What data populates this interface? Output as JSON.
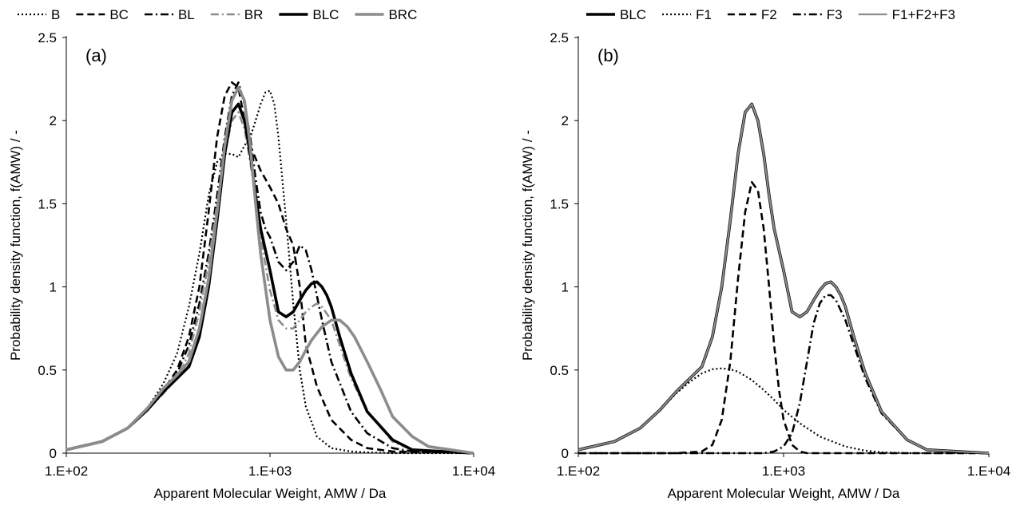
{
  "chart_data": [
    {
      "type": "line",
      "panel_label": "(a)",
      "xlabel": "Apparent Molecular Weight, AMW / Da",
      "ylabel": "Probability density function,  f(AMW) / -",
      "x_scale": "log",
      "xlim": [
        100,
        10000
      ],
      "ylim": [
        0,
        2.5
      ],
      "x_ticks": [
        100,
        1000,
        10000
      ],
      "x_tick_labels": [
        "1.E+02",
        "1.E+03",
        "1.E+04"
      ],
      "y_ticks": [
        0,
        0.5,
        1,
        1.5,
        2,
        2.5
      ],
      "y_tick_labels": [
        "0",
        "0.5",
        "1",
        "1.5",
        "2",
        "2.5"
      ],
      "grid": false,
      "legend_position": "top",
      "series": [
        {
          "name": "B",
          "color": "#000000",
          "style": "dotted",
          "x": [
            100,
            150,
            200,
            250,
            300,
            350,
            400,
            450,
            500,
            550,
            600,
            650,
            700,
            750,
            800,
            850,
            900,
            950,
            1000,
            1050,
            1100,
            1200,
            1300,
            1400,
            1500,
            1700,
            2000,
            2500,
            3000,
            4000,
            10000
          ],
          "y": [
            0.02,
            0.07,
            0.15,
            0.27,
            0.42,
            0.6,
            0.88,
            1.2,
            1.55,
            1.75,
            1.8,
            1.8,
            1.78,
            1.85,
            1.9,
            2.0,
            2.1,
            2.17,
            2.18,
            2.1,
            1.9,
            1.4,
            0.9,
            0.5,
            0.28,
            0.1,
            0.03,
            0.01,
            0.005,
            0,
            0
          ]
        },
        {
          "name": "BC",
          "color": "#000000",
          "style": "dashed",
          "x": [
            100,
            150,
            200,
            250,
            300,
            350,
            400,
            450,
            500,
            550,
            600,
            650,
            700,
            750,
            800,
            900,
            1000,
            1100,
            1200,
            1300,
            1400,
            1500,
            1700,
            2000,
            2500,
            3000,
            4000,
            10000
          ],
          "y": [
            0.02,
            0.07,
            0.15,
            0.26,
            0.38,
            0.5,
            0.7,
            1.0,
            1.45,
            1.9,
            2.15,
            2.23,
            2.2,
            2.0,
            1.85,
            1.7,
            1.6,
            1.5,
            1.35,
            1.25,
            1.0,
            0.65,
            0.4,
            0.2,
            0.08,
            0.03,
            0.01,
            0
          ]
        },
        {
          "name": "BL",
          "color": "#000000",
          "style": "dashdot",
          "x": [
            100,
            150,
            200,
            250,
            300,
            350,
            400,
            450,
            500,
            550,
            600,
            650,
            700,
            750,
            800,
            850,
            900,
            950,
            1000,
            1100,
            1200,
            1300,
            1400,
            1500,
            1600,
            1800,
            2000,
            2500,
            3000,
            4000,
            5000,
            10000
          ],
          "y": [
            0.02,
            0.07,
            0.15,
            0.27,
            0.38,
            0.48,
            0.65,
            0.9,
            1.2,
            1.55,
            1.9,
            2.15,
            2.23,
            2.1,
            1.9,
            1.65,
            1.45,
            1.35,
            1.3,
            1.15,
            1.1,
            1.15,
            1.25,
            1.22,
            1.1,
            0.8,
            0.55,
            0.25,
            0.12,
            0.03,
            0.01,
            0
          ]
        },
        {
          "name": "BR",
          "color": "#8c8c8c",
          "style": "dashdot",
          "x": [
            100,
            150,
            200,
            250,
            300,
            350,
            400,
            450,
            500,
            550,
            600,
            650,
            700,
            750,
            800,
            850,
            900,
            1000,
            1100,
            1200,
            1300,
            1400,
            1500,
            1600,
            1700,
            1800,
            2000,
            2200,
            2500,
            3000,
            4000,
            5000,
            10000
          ],
          "y": [
            0.02,
            0.07,
            0.15,
            0.26,
            0.36,
            0.45,
            0.6,
            0.85,
            1.15,
            1.5,
            1.8,
            2.0,
            2.05,
            1.95,
            1.75,
            1.55,
            1.3,
            0.98,
            0.8,
            0.75,
            0.75,
            0.8,
            0.85,
            0.88,
            0.9,
            0.88,
            0.8,
            0.65,
            0.45,
            0.25,
            0.07,
            0.02,
            0
          ]
        },
        {
          "name": "BLC",
          "color": "#000000",
          "style": "solid-thick",
          "x": [
            100,
            150,
            200,
            250,
            300,
            350,
            400,
            450,
            500,
            550,
            600,
            650,
            700,
            750,
            800,
            850,
            900,
            1000,
            1100,
            1200,
            1300,
            1400,
            1500,
            1600,
            1700,
            1800,
            1900,
            2000,
            2200,
            2500,
            3000,
            4000,
            5000,
            10000
          ],
          "y": [
            0.02,
            0.07,
            0.15,
            0.26,
            0.37,
            0.45,
            0.52,
            0.7,
            1.0,
            1.4,
            1.8,
            2.05,
            2.1,
            2.0,
            1.8,
            1.55,
            1.35,
            1.1,
            0.85,
            0.82,
            0.85,
            0.92,
            0.98,
            1.02,
            1.03,
            1.0,
            0.95,
            0.88,
            0.7,
            0.48,
            0.25,
            0.08,
            0.02,
            0
          ]
        },
        {
          "name": "BRC",
          "color": "#8c8c8c",
          "style": "solid-thick",
          "x": [
            100,
            150,
            200,
            250,
            300,
            350,
            400,
            450,
            500,
            550,
            600,
            650,
            700,
            750,
            800,
            850,
            900,
            1000,
            1100,
            1200,
            1300,
            1400,
            1500,
            1600,
            1800,
            2000,
            2200,
            2400,
            2600,
            3000,
            3500,
            4000,
            5000,
            6000,
            10000
          ],
          "y": [
            0.02,
            0.07,
            0.15,
            0.27,
            0.39,
            0.47,
            0.55,
            0.75,
            1.05,
            1.45,
            1.85,
            2.12,
            2.2,
            2.12,
            1.85,
            1.5,
            1.2,
            0.8,
            0.58,
            0.5,
            0.5,
            0.55,
            0.62,
            0.68,
            0.76,
            0.8,
            0.8,
            0.76,
            0.7,
            0.55,
            0.38,
            0.22,
            0.1,
            0.04,
            0
          ]
        }
      ]
    },
    {
      "type": "line",
      "panel_label": "(b)",
      "xlabel": "Apparent Molecular Weight, AMW / Da",
      "ylabel": "Probability density function,  f(AMW) / -",
      "x_scale": "log",
      "xlim": [
        100,
        10000
      ],
      "ylim": [
        0,
        2.5
      ],
      "x_ticks": [
        100,
        1000,
        10000
      ],
      "x_tick_labels": [
        "1.E+02",
        "1.E+03",
        "1.E+04"
      ],
      "y_ticks": [
        0,
        0.5,
        1,
        1.5,
        2,
        2.5
      ],
      "y_tick_labels": [
        "0",
        "0.5",
        "1",
        "1.5",
        "2",
        "2.5"
      ],
      "grid": false,
      "legend_position": "top",
      "series": [
        {
          "name": "BLC",
          "color": "#000000",
          "style": "solid-thick",
          "x": [
            100,
            150,
            200,
            250,
            300,
            350,
            400,
            450,
            500,
            550,
            600,
            650,
            700,
            750,
            800,
            850,
            900,
            1000,
            1100,
            1200,
            1300,
            1400,
            1500,
            1600,
            1700,
            1800,
            1900,
            2000,
            2200,
            2500,
            3000,
            4000,
            5000,
            10000
          ],
          "y": [
            0.02,
            0.07,
            0.15,
            0.26,
            0.37,
            0.45,
            0.52,
            0.7,
            1.0,
            1.4,
            1.8,
            2.05,
            2.1,
            2.0,
            1.8,
            1.55,
            1.35,
            1.1,
            0.85,
            0.82,
            0.85,
            0.92,
            0.98,
            1.02,
            1.03,
            1.0,
            0.95,
            0.88,
            0.7,
            0.48,
            0.25,
            0.08,
            0.02,
            0
          ]
        },
        {
          "name": "F1",
          "color": "#000000",
          "style": "dotted",
          "x": [
            100,
            150,
            200,
            250,
            300,
            350,
            400,
            450,
            500,
            550,
            600,
            700,
            800,
            900,
            1000,
            1200,
            1500,
            2000,
            2500,
            3000,
            4000,
            10000
          ],
          "y": [
            0.02,
            0.07,
            0.15,
            0.26,
            0.36,
            0.43,
            0.48,
            0.505,
            0.51,
            0.505,
            0.49,
            0.44,
            0.38,
            0.32,
            0.26,
            0.18,
            0.1,
            0.04,
            0.015,
            0.005,
            0,
            0
          ]
        },
        {
          "name": "F2",
          "color": "#000000",
          "style": "dashed",
          "x": [
            100,
            300,
            400,
            450,
            500,
            550,
            600,
            650,
            700,
            750,
            800,
            850,
            900,
            950,
            1000,
            1100,
            1200,
            1300,
            10000
          ],
          "y": [
            0,
            0,
            0.01,
            0.05,
            0.2,
            0.55,
            1.05,
            1.45,
            1.63,
            1.58,
            1.35,
            1.0,
            0.65,
            0.38,
            0.2,
            0.05,
            0.01,
            0,
            0
          ]
        },
        {
          "name": "F3",
          "color": "#000000",
          "style": "dashdot",
          "x": [
            100,
            800,
            900,
            1000,
            1100,
            1200,
            1300,
            1400,
            1500,
            1600,
            1700,
            1800,
            2000,
            2200,
            2500,
            3000,
            4000,
            5000,
            10000
          ],
          "y": [
            0,
            0,
            0.01,
            0.04,
            0.12,
            0.3,
            0.55,
            0.78,
            0.9,
            0.95,
            0.95,
            0.92,
            0.8,
            0.65,
            0.45,
            0.24,
            0.08,
            0.02,
            0
          ]
        },
        {
          "name": "F1+F2+F3",
          "color": "#8c8c8c",
          "style": "solid",
          "x": [
            100,
            150,
            200,
            250,
            300,
            350,
            400,
            450,
            500,
            550,
            600,
            650,
            700,
            750,
            800,
            850,
            900,
            1000,
            1100,
            1200,
            1300,
            1400,
            1500,
            1600,
            1700,
            1800,
            1900,
            2000,
            2200,
            2500,
            3000,
            4000,
            5000,
            10000
          ],
          "y": [
            0.02,
            0.07,
            0.15,
            0.26,
            0.37,
            0.45,
            0.52,
            0.7,
            1.0,
            1.4,
            1.8,
            2.05,
            2.1,
            2.0,
            1.8,
            1.55,
            1.35,
            1.1,
            0.85,
            0.82,
            0.85,
            0.92,
            0.98,
            1.02,
            1.03,
            1.0,
            0.95,
            0.88,
            0.7,
            0.48,
            0.25,
            0.08,
            0.02,
            0
          ]
        }
      ]
    }
  ]
}
